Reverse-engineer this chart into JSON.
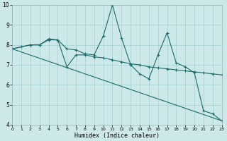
{
  "xlabel": "Humidex (Indice chaleur)",
  "bg_color": "#cce8e8",
  "line_color": "#1a6b6b",
  "grid_color": "#aad4d4",
  "xlim": [
    0,
    23
  ],
  "ylim": [
    4,
    10
  ],
  "xticks": [
    0,
    1,
    2,
    3,
    4,
    5,
    6,
    7,
    8,
    9,
    10,
    11,
    12,
    13,
    14,
    15,
    16,
    17,
    18,
    19,
    20,
    21,
    22,
    23
  ],
  "yticks": [
    4,
    5,
    6,
    7,
    8,
    9,
    10
  ],
  "line1_x": [
    0,
    1,
    2,
    3,
    4,
    5,
    6,
    7,
    8,
    9,
    10,
    11,
    12,
    13,
    14,
    15,
    16,
    17,
    18,
    19,
    20,
    21,
    22,
    23
  ],
  "line1_y": [
    7.8,
    7.9,
    8.0,
    8.0,
    8.3,
    8.25,
    7.8,
    7.75,
    7.55,
    7.5,
    8.45,
    10.0,
    8.35,
    7.0,
    6.55,
    6.3,
    7.5,
    8.6,
    7.1,
    6.9,
    6.6,
    4.7,
    4.55,
    4.2
  ],
  "line2_x": [
    0,
    23
  ],
  "line2_y": [
    7.8,
    4.2
  ],
  "line3_x": [
    0,
    2,
    3,
    4,
    5,
    6,
    7,
    8,
    9,
    10,
    11,
    12,
    13,
    14,
    15,
    16,
    17,
    18,
    19,
    20,
    21,
    22,
    23
  ],
  "line3_y": [
    7.8,
    8.0,
    8.0,
    8.25,
    8.25,
    6.9,
    7.5,
    7.5,
    7.4,
    7.35,
    7.25,
    7.15,
    7.05,
    7.0,
    6.9,
    6.85,
    6.8,
    6.75,
    6.7,
    6.65,
    6.6,
    6.55,
    6.5
  ]
}
